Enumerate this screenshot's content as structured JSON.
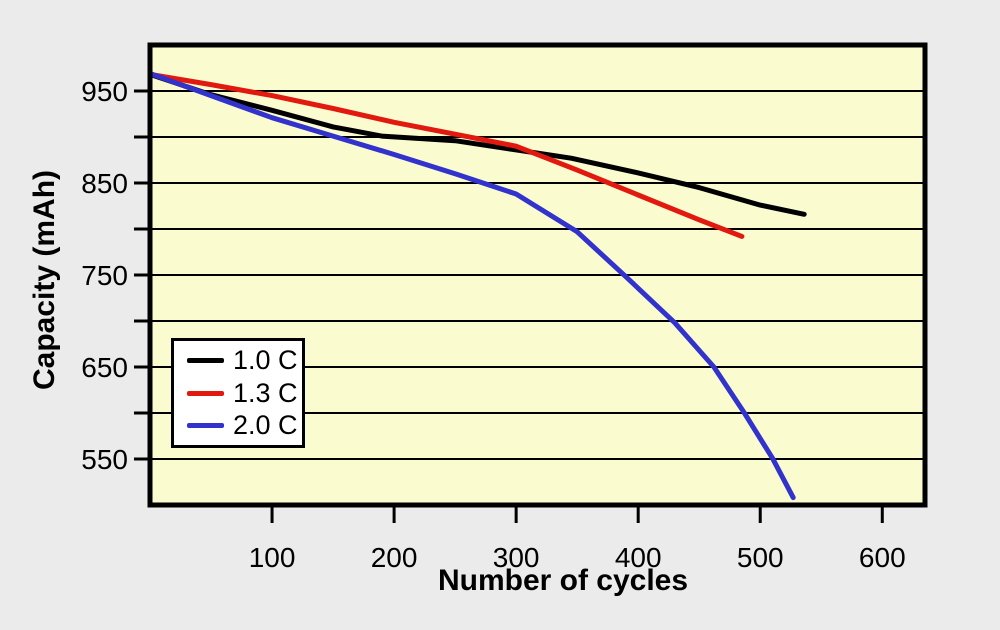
{
  "chart_data": {
    "type": "line",
    "title": "",
    "xlabel": "Number of cycles",
    "ylabel": "Capacity (mAh)",
    "xlim": [
      0,
      635
    ],
    "ylim": [
      500,
      1000
    ],
    "x_ticks": [
      100,
      200,
      300,
      400,
      500,
      600
    ],
    "y_ticks": [
      550,
      600,
      650,
      700,
      750,
      800,
      850,
      900,
      950
    ],
    "y_tick_labels": [
      550,
      650,
      750,
      850,
      950
    ],
    "grid": "horizontal-every-50",
    "legend_position": "inside-lower-left",
    "colors": {
      "outer_background": "#ebebeb",
      "plot_background": "#fbfbd0",
      "axis": "#000000",
      "legend_background": "#ffffff"
    },
    "series": [
      {
        "name": "1.0 C",
        "color": "#000000",
        "points": [
          [
            0,
            968
          ],
          [
            50,
            946
          ],
          [
            100,
            929
          ],
          [
            150,
            911
          ],
          [
            190,
            901
          ],
          [
            250,
            896
          ],
          [
            300,
            886
          ],
          [
            345,
            877
          ],
          [
            400,
            861
          ],
          [
            450,
            845
          ],
          [
            500,
            826
          ],
          [
            536,
            816
          ]
        ]
      },
      {
        "name": "1.3 C",
        "color": "#e2190f",
        "points": [
          [
            0,
            968
          ],
          [
            50,
            957
          ],
          [
            100,
            945
          ],
          [
            150,
            931
          ],
          [
            200,
            916
          ],
          [
            250,
            903
          ],
          [
            300,
            890
          ],
          [
            350,
            864
          ],
          [
            400,
            837
          ],
          [
            450,
            810
          ],
          [
            485,
            792
          ]
        ]
      },
      {
        "name": "2.0 C",
        "color": "#3232cd",
        "points": [
          [
            0,
            969
          ],
          [
            50,
            945
          ],
          [
            100,
            921
          ],
          [
            150,
            901
          ],
          [
            200,
            881
          ],
          [
            250,
            860
          ],
          [
            300,
            838
          ],
          [
            350,
            797
          ],
          [
            390,
            748
          ],
          [
            430,
            698
          ],
          [
            462,
            650
          ],
          [
            487,
            600
          ],
          [
            510,
            551
          ],
          [
            527,
            508
          ]
        ]
      }
    ]
  }
}
